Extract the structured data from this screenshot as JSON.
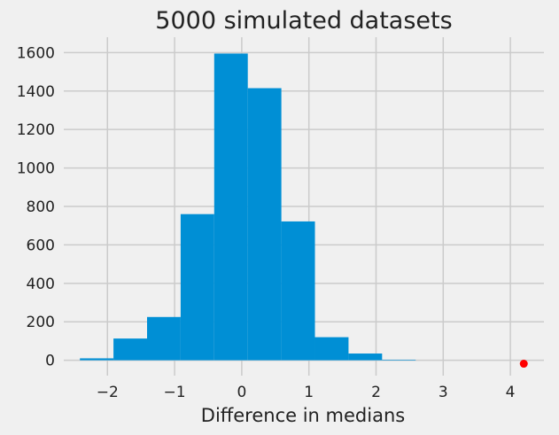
{
  "chart_data": {
    "type": "bar",
    "title": "5000 simulated datasets",
    "xlabel": "Difference in medians",
    "ylabel": "",
    "xlim": [
      -2.65,
      4.5
    ],
    "ylim": [
      -80,
      1680
    ],
    "xticks": [
      -2,
      -1,
      0,
      1,
      2,
      3,
      4
    ],
    "xtick_labels": [
      "−2",
      "−1",
      "0",
      "1",
      "2",
      "3",
      "4"
    ],
    "yticks": [
      0,
      200,
      400,
      600,
      800,
      1000,
      1200,
      1400,
      1600
    ],
    "ytick_labels": [
      "0",
      "200",
      "400",
      "600",
      "800",
      "1000",
      "1200",
      "1400",
      "1600"
    ],
    "grid": true,
    "bins": [
      {
        "x0": -2.41,
        "x1": -1.91,
        "value": 10
      },
      {
        "x0": -1.91,
        "x1": -1.41,
        "value": 113
      },
      {
        "x0": -1.41,
        "x1": -0.91,
        "value": 225
      },
      {
        "x0": -0.91,
        "x1": -0.41,
        "value": 760
      },
      {
        "x0": -0.41,
        "x1": 0.09,
        "value": 1595
      },
      {
        "x0": 0.09,
        "x1": 0.59,
        "value": 1415
      },
      {
        "x0": 0.59,
        "x1": 1.09,
        "value": 722
      },
      {
        "x0": 1.09,
        "x1": 1.59,
        "value": 120
      },
      {
        "x0": 1.59,
        "x1": 2.09,
        "value": 35
      },
      {
        "x0": 2.09,
        "x1": 2.59,
        "value": 3
      }
    ],
    "points": [
      {
        "x": 4.2,
        "y": -18,
        "color": "#ff0000"
      }
    ],
    "colors": {
      "bar": "#008fd5",
      "background": "#f0f0f0",
      "grid": "#cbcbcb",
      "point": "#ff0000"
    }
  }
}
